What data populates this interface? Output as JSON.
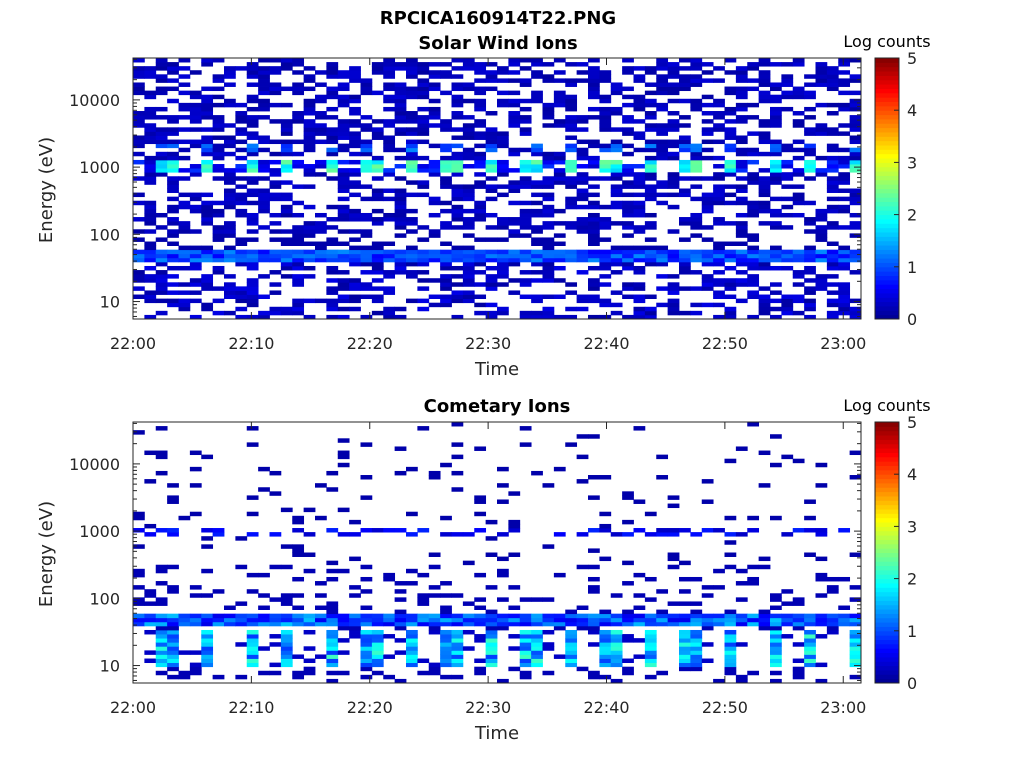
{
  "figure_title": "RPCICA160914T22.PNG",
  "colors": {
    "colormap": [
      "#00008f",
      "#0000ff",
      "#0080ff",
      "#00ffff",
      "#80ff80",
      "#ffff00",
      "#ff8000",
      "#ff0000",
      "#800000"
    ],
    "axes_edge": "#262626"
  },
  "chart_data": [
    {
      "type": "heatmap",
      "title": "Solar Wind Ions",
      "xlabel": "Time",
      "ylabel": "Energy (eV)",
      "x_ticks": [
        "22:00",
        "22:10",
        "22:20",
        "22:30",
        "22:40",
        "22:50",
        "23:00"
      ],
      "x_range_minutes": [
        0,
        61.5
      ],
      "y_scale": "log",
      "y_ticks": [
        "10",
        "100",
        "1000",
        "10000"
      ],
      "y_range": [
        5.5,
        42000
      ],
      "colorbar": {
        "label": "Log counts",
        "ticks": [
          "0",
          "1",
          "2",
          "3",
          "4",
          "5"
        ],
        "range": [
          0,
          5
        ]
      },
      "features": [
        {
          "energy_eV": 1000,
          "peak_log_counts": 2.3,
          "note": "periodic solar wind bursts"
        },
        {
          "energy_eV": 45,
          "peak_log_counts": 1.2
        },
        {
          "energy_eV": [
            8,
            30
          ],
          "typical_log_counts": 0.3
        }
      ]
    },
    {
      "type": "heatmap",
      "title": "Cometary Ions",
      "xlabel": "Time",
      "ylabel": "Energy (eV)",
      "x_ticks": [
        "22:00",
        "22:10",
        "22:20",
        "22:30",
        "22:40",
        "22:50",
        "23:00"
      ],
      "x_range_minutes": [
        0,
        61.5
      ],
      "y_scale": "log",
      "y_ticks": [
        "10",
        "100",
        "1000",
        "10000"
      ],
      "y_range": [
        5.5,
        42000
      ],
      "colorbar": {
        "label": "Log counts",
        "ticks": [
          "0",
          "1",
          "2",
          "3",
          "4",
          "5"
        ],
        "range": [
          0,
          5
        ]
      },
      "features": [
        {
          "energy_eV": 45,
          "peak_log_counts": 1.8
        },
        {
          "energy_eV": [
            10,
            30
          ],
          "peak_log_counts": 2.2,
          "note": "periodic cometary ion bursts"
        },
        {
          "energy_eV": 1000,
          "typical_log_counts": 0.5
        }
      ]
    }
  ]
}
